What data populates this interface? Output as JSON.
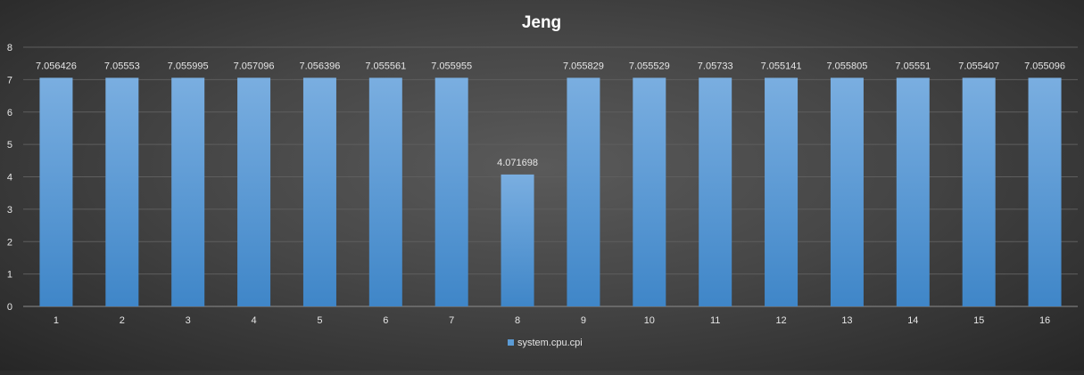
{
  "chart_data": {
    "type": "bar",
    "title": "Jeng",
    "xlabel": "",
    "ylabel": "",
    "categories": [
      "1",
      "2",
      "3",
      "4",
      "5",
      "6",
      "7",
      "8",
      "9",
      "10",
      "11",
      "12",
      "13",
      "14",
      "15",
      "16"
    ],
    "series": [
      {
        "name": "system.cpu.cpi",
        "values": [
          7.056426,
          7.05553,
          7.055995,
          7.057096,
          7.056396,
          7.055561,
          7.055955,
          4.071698,
          7.055829,
          7.055529,
          7.05733,
          7.055141,
          7.055805,
          7.05551,
          7.055407,
          7.055096
        ]
      }
    ],
    "data_labels": [
      "7.056426",
      "7.05553",
      "7.055995",
      "7.057096",
      "7.056396",
      "7.055561",
      "7.055955",
      "4.071698",
      "7.055829",
      "7.055529",
      "7.05733",
      "7.055141",
      "7.055805",
      "7.05551",
      "7.055407",
      "7.055096"
    ],
    "ylim": [
      0,
      8
    ],
    "yticks": [
      0,
      1,
      2,
      3,
      4,
      5,
      6,
      7,
      8
    ],
    "grid": true,
    "legend_position": "bottom",
    "colors": {
      "bar_top": "#7aaee0",
      "bar_bottom": "#3f86c8",
      "grid": "#5e5e5e",
      "axis": "#8c8c8c",
      "text": "#e6e6e6",
      "title": "#ffffff"
    }
  }
}
